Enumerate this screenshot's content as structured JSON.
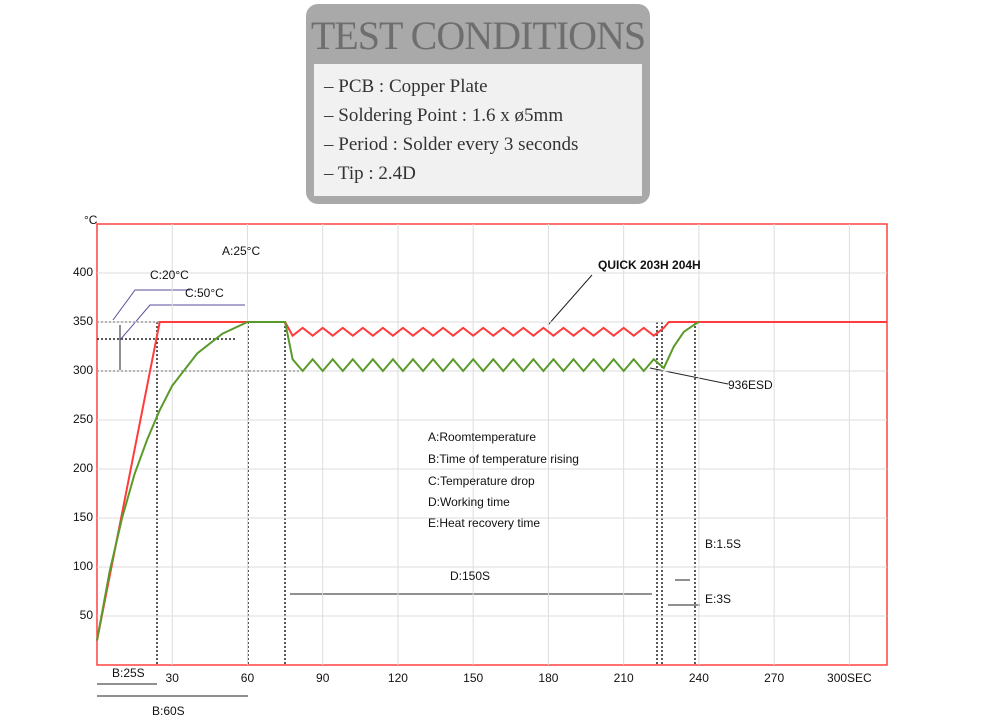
{
  "test_conditions": {
    "title": "TEST CONDITIONS",
    "items": [
      "– PCB : Copper Plate",
      "– Soldering Point : 1.6 x ø5mm",
      "– Period : Solder every 3 seconds",
      "– Tip : 2.4D"
    ]
  },
  "chart_data": {
    "type": "line",
    "y_label": "°C",
    "xlim": [
      0,
      315
    ],
    "ylim": [
      0,
      450
    ],
    "xticks": [
      30,
      60,
      90,
      120,
      150,
      180,
      210,
      240,
      270,
      {
        "value": 300,
        "label": "300SEC"
      }
    ],
    "yticks": [
      50,
      100,
      150,
      200,
      250,
      300,
      350,
      400
    ],
    "grid": true,
    "series": [
      {
        "name": "QUICK 203H 204H",
        "color": "#ff3b3b",
        "x": [
          0,
          25,
          75,
          78,
          82,
          86,
          90,
          94,
          98,
          102,
          106,
          110,
          114,
          118,
          122,
          126,
          130,
          134,
          138,
          142,
          146,
          150,
          154,
          158,
          162,
          166,
          170,
          174,
          178,
          182,
          186,
          190,
          194,
          198,
          202,
          206,
          210,
          214,
          218,
          222,
          226,
          228,
          315
        ],
        "values": [
          25,
          350,
          350,
          336,
          344,
          336,
          344,
          336,
          344,
          336,
          344,
          336,
          344,
          336,
          344,
          336,
          344,
          336,
          344,
          336,
          344,
          336,
          344,
          336,
          344,
          336,
          344,
          336,
          344,
          336,
          344,
          336,
          344,
          336,
          344,
          336,
          344,
          336,
          344,
          336,
          344,
          350,
          350
        ]
      },
      {
        "name": "936ESD",
        "color": "#5a9a2a",
        "x": [
          0,
          5,
          10,
          15,
          20,
          25,
          30,
          40,
          50,
          60,
          75,
          78,
          82,
          86,
          90,
          94,
          98,
          102,
          106,
          110,
          114,
          118,
          122,
          126,
          130,
          134,
          138,
          142,
          146,
          150,
          154,
          158,
          162,
          166,
          170,
          174,
          178,
          182,
          186,
          190,
          194,
          198,
          202,
          206,
          210,
          214,
          218,
          222,
          226,
          230,
          234,
          238,
          240
        ],
        "values": [
          25,
          95,
          150,
          195,
          230,
          260,
          285,
          318,
          338,
          350,
          350,
          312,
          300,
          312,
          300,
          312,
          300,
          312,
          300,
          312,
          300,
          312,
          300,
          312,
          300,
          312,
          300,
          312,
          300,
          312,
          300,
          312,
          300,
          312,
          300,
          312,
          300,
          312,
          300,
          312,
          300,
          312,
          300,
          312,
          300,
          312,
          300,
          312,
          303,
          325,
          340,
          347,
          350
        ]
      }
    ],
    "annotations": [
      "A:25°C",
      "C:20°C",
      "C:50°C",
      "A:Roomtemperature",
      "B:Time of temperature rising",
      "C:Temperature drop",
      "D:Working time",
      "E:Heat recovery time",
      "D:150S",
      "B:1.5S",
      "E:3S",
      "B:25S",
      "B:60S"
    ]
  }
}
